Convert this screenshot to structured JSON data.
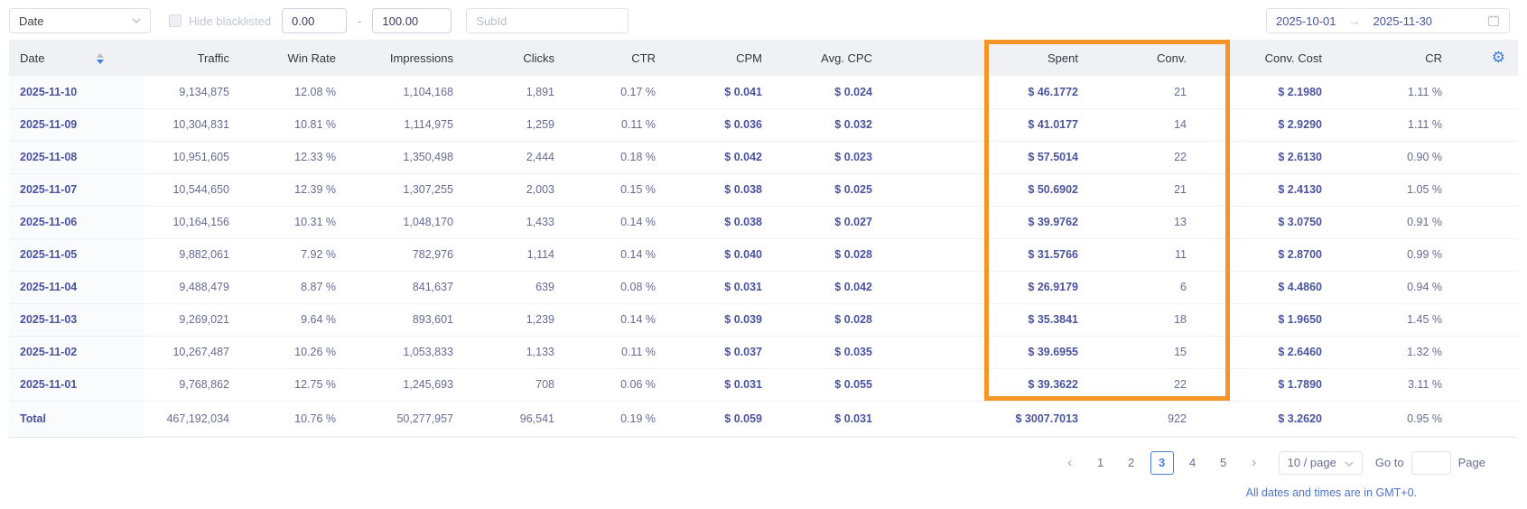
{
  "filters": {
    "group_by_value": "Date",
    "hide_blacklisted_label": "Hide blacklisted",
    "hide_blacklisted_checked": false,
    "range_min": "0.00",
    "range_separator": "-",
    "range_max": "100.00",
    "subid_placeholder": "SubId",
    "date_start": "2025-10-01",
    "date_end": "2025-11-30"
  },
  "table": {
    "columns": [
      "Date",
      "Traffic",
      "Win Rate",
      "Impressions",
      "Clicks",
      "CTR",
      "CPM",
      "Avg. CPC",
      "Spent",
      "Conv.",
      "Conv. Cost",
      "CR"
    ],
    "rows": [
      [
        "2025-11-10",
        "9,134,875",
        "12.08 %",
        "1,104,168",
        "1,891",
        "0.17 %",
        "$ 0.041",
        "$ 0.024",
        "$ 46.1772",
        "21",
        "$ 2.1980",
        "1.11 %"
      ],
      [
        "2025-11-09",
        "10,304,831",
        "10.81 %",
        "1,114,975",
        "1,259",
        "0.11 %",
        "$ 0.036",
        "$ 0.032",
        "$ 41.0177",
        "14",
        "$ 2.9290",
        "1.11 %"
      ],
      [
        "2025-11-08",
        "10,951,605",
        "12.33 %",
        "1,350,498",
        "2,444",
        "0.18 %",
        "$ 0.042",
        "$ 0.023",
        "$ 57.5014",
        "22",
        "$ 2.6130",
        "0.90 %"
      ],
      [
        "2025-11-07",
        "10,544,650",
        "12.39 %",
        "1,307,255",
        "2,003",
        "0.15 %",
        "$ 0.038",
        "$ 0.025",
        "$ 50.6902",
        "21",
        "$ 2.4130",
        "1.05 %"
      ],
      [
        "2025-11-06",
        "10,164,156",
        "10.31 %",
        "1,048,170",
        "1,433",
        "0.14 %",
        "$ 0.038",
        "$ 0.027",
        "$ 39.9762",
        "13",
        "$ 3.0750",
        "0.91 %"
      ],
      [
        "2025-11-05",
        "9,882,061",
        "7.92 %",
        "782,976",
        "1,114",
        "0.14 %",
        "$ 0.040",
        "$ 0.028",
        "$ 31.5766",
        "11",
        "$ 2.8700",
        "0.99 %"
      ],
      [
        "2025-11-04",
        "9,488,479",
        "8.87 %",
        "841,637",
        "639",
        "0.08 %",
        "$ 0.031",
        "$ 0.042",
        "$ 26.9179",
        "6",
        "$ 4.4860",
        "0.94 %"
      ],
      [
        "2025-11-03",
        "9,269,021",
        "9.64 %",
        "893,601",
        "1,239",
        "0.14 %",
        "$ 0.039",
        "$ 0.028",
        "$ 35.3841",
        "18",
        "$ 1.9650",
        "1.45 %"
      ],
      [
        "2025-11-02",
        "10,267,487",
        "10.26 %",
        "1,053,833",
        "1,133",
        "0.11 %",
        "$ 0.037",
        "$ 0.035",
        "$ 39.6955",
        "15",
        "$ 2.6460",
        "1.32 %"
      ],
      [
        "2025-11-01",
        "9,768,862",
        "12.75 %",
        "1,245,693",
        "708",
        "0.06 %",
        "$ 0.031",
        "$ 0.055",
        "$ 39.3622",
        "22",
        "$ 1.7890",
        "3.11 %"
      ]
    ],
    "total": [
      "Total",
      "467,192,034",
      "10.76 %",
      "50,277,957",
      "96,541",
      "0.19 %",
      "$ 0.059",
      "$ 0.031",
      "$ 3007.7013",
      "922",
      "$ 3.2620",
      "0.95 %"
    ],
    "sort": {
      "column": "Date",
      "direction": "desc"
    }
  },
  "highlight": {
    "columns": [
      "Spent",
      "Conv."
    ],
    "color": "#F59427"
  },
  "pagination": {
    "pages": [
      "1",
      "2",
      "3",
      "4",
      "5"
    ],
    "current": "3",
    "page_size": "10 / page",
    "goto_label": "Go to",
    "page_label": "Page"
  },
  "footer": {
    "timezone_note": "All dates and times are in GMT+0."
  }
}
